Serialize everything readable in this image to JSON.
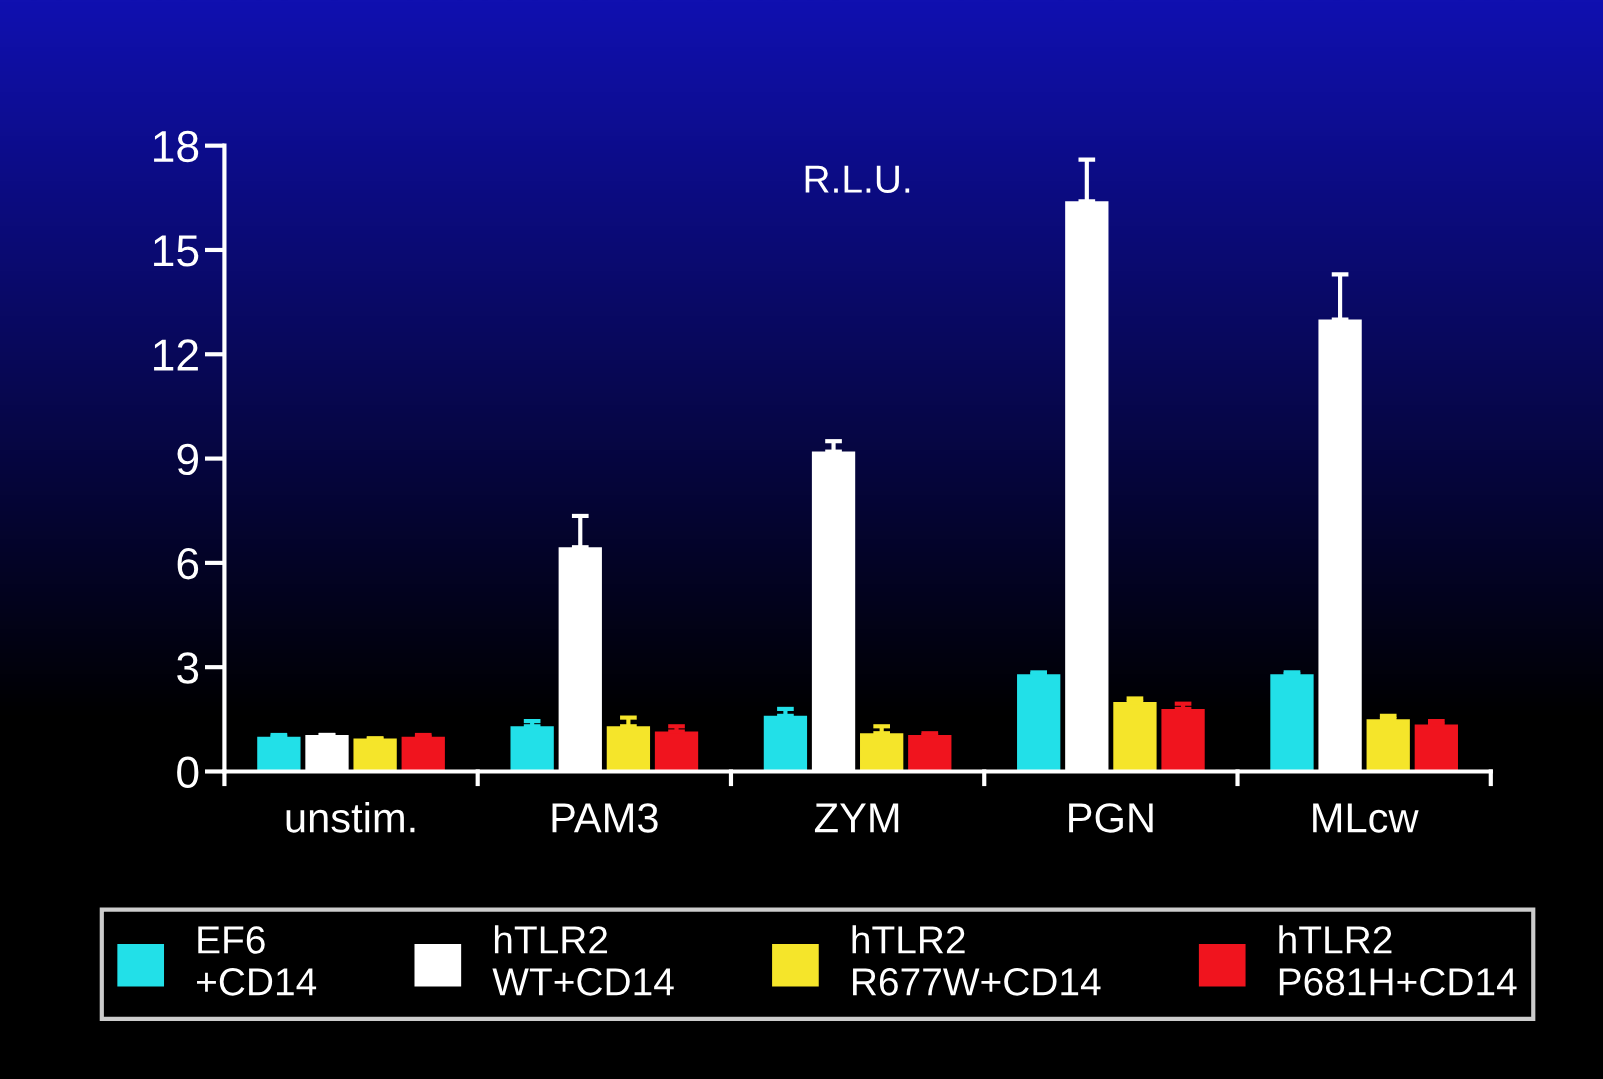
{
  "chart_data": {
    "type": "bar",
    "title": "R.L.U.",
    "categories": [
      "unstim.",
      "PAM3",
      "ZYM",
      "PGN",
      "MLcw"
    ],
    "series": [
      {
        "name": "EF6\n+CD14",
        "color": "#22e0e8",
        "values": [
          1.0,
          1.3,
          1.6,
          2.8,
          2.8
        ],
        "errors": [
          [
            1.0,
            1.05
          ],
          [
            1.3,
            1.45
          ],
          [
            1.6,
            1.8
          ],
          [
            2.8,
            2.85
          ],
          [
            2.8,
            2.85
          ]
        ]
      },
      {
        "name": "hTLR2\nWT+CD14",
        "color": "#ffffff",
        "values": [
          1.05,
          6.45,
          9.2,
          16.4,
          13.0
        ],
        "errors": [
          [
            1.05,
            1.05
          ],
          [
            6.45,
            7.35
          ],
          [
            9.2,
            9.5
          ],
          [
            16.4,
            17.6
          ],
          [
            13.0,
            14.3
          ]
        ]
      },
      {
        "name": "hTLR2\nR677W+CD14",
        "color": "#f5e52a",
        "values": [
          0.95,
          1.3,
          1.1,
          2.0,
          1.5
        ],
        "errors": [
          [
            0.95,
            0.95
          ],
          [
            1.3,
            1.55
          ],
          [
            1.1,
            1.3
          ],
          [
            2.0,
            2.1
          ],
          [
            1.5,
            1.6
          ]
        ]
      },
      {
        "name": "hTLR2\nP681H+CD14",
        "color": "#f0141e",
        "values": [
          1.0,
          1.15,
          1.05,
          1.8,
          1.35
        ],
        "errors": [
          [
            1.0,
            1.05
          ],
          [
            1.15,
            1.3
          ],
          [
            1.05,
            1.1
          ],
          [
            1.8,
            1.95
          ],
          [
            1.35,
            1.45
          ]
        ]
      }
    ],
    "ylim": [
      0,
      18
    ],
    "yticks": [
      0,
      3,
      6,
      9,
      12,
      15,
      18
    ],
    "grid": false,
    "legend": "bottom"
  }
}
